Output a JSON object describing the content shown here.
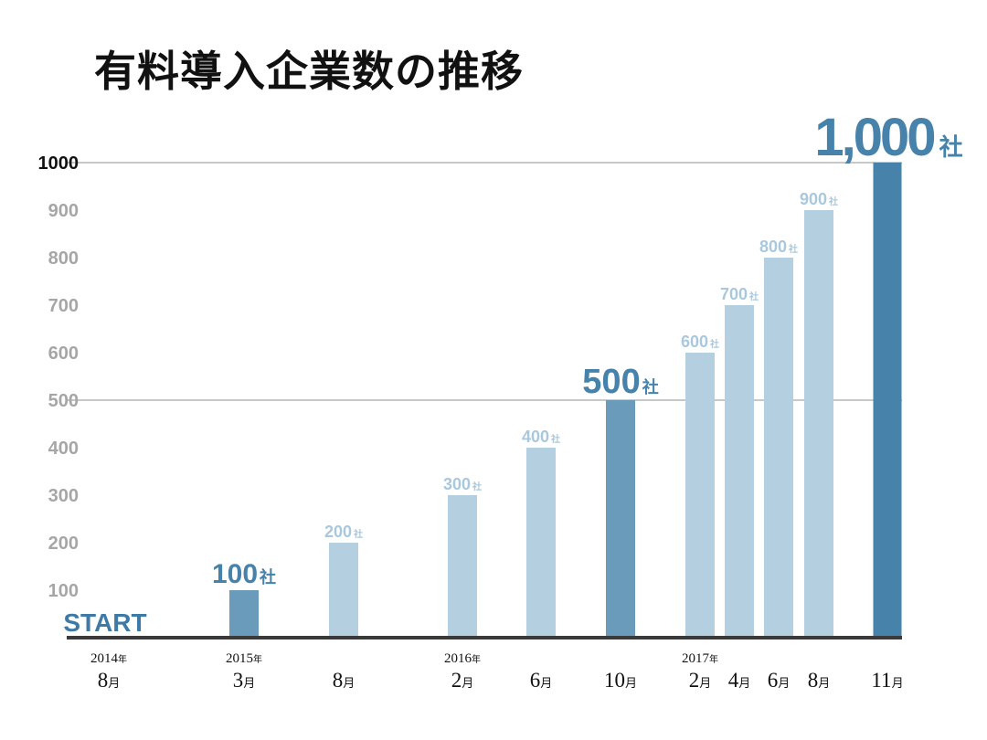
{
  "title": "有料導入企業数の推移",
  "chart_data": {
    "type": "bar",
    "title": "有料導入企業数の推移",
    "xlabel": "",
    "ylabel": "",
    "ylim": [
      0,
      1000
    ],
    "y_ticks": [
      "100",
      "200",
      "300",
      "400",
      "500",
      "600",
      "700",
      "800",
      "900",
      "1000"
    ],
    "start_label": "START",
    "unit": "社",
    "year_suffix": "年",
    "month_suffix": "月",
    "categories": [
      "2014年8月",
      "2015年3月",
      "8月",
      "2016年2月",
      "6月",
      "10月",
      "2017年2月",
      "4月",
      "6月",
      "8月",
      "11月"
    ],
    "values": [
      0,
      100,
      200,
      300,
      400,
      500,
      600,
      700,
      800,
      900,
      1000
    ],
    "value_labels": [
      "",
      "100",
      "200",
      "300",
      "400",
      "500",
      "600",
      "700",
      "800",
      "900",
      "1,000"
    ],
    "x_years": [
      "2014",
      "2015",
      "",
      "2016",
      "",
      "",
      "2017",
      "",
      "",
      "",
      ""
    ],
    "x_months": [
      "8",
      "3",
      "8",
      "2",
      "6",
      "10",
      "2",
      "4",
      "6",
      "8",
      "11"
    ],
    "emphasis": [
      "none",
      "milestone",
      "normal",
      "normal",
      "normal",
      "milestone",
      "normal",
      "normal",
      "normal",
      "normal",
      "major"
    ],
    "colors": {
      "normal": "#b3cfe0",
      "milestone": "#6a9bba",
      "major": "#4682aa",
      "start": "#3f7aa6",
      "axis": "#3a3a3a",
      "grid": "#c8c8c8",
      "tick": "#a6a6a6",
      "tick_top": "#111111",
      "label_light": "#a9c8dd"
    },
    "grid": "major-ticks-only",
    "legend": "none"
  }
}
